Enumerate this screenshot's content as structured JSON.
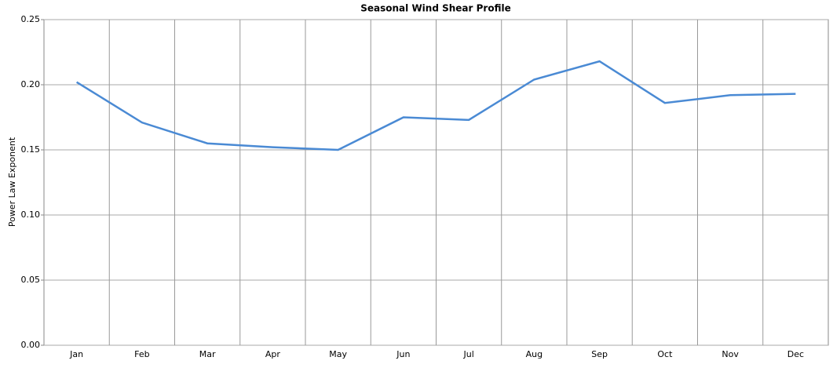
{
  "chart_data": {
    "type": "line",
    "title": "Seasonal Wind Shear Profile",
    "y_label": "Power Law Exponent",
    "categories": [
      "Jan",
      "Feb",
      "Mar",
      "Apr",
      "May",
      "Jun",
      "Jul",
      "Aug",
      "Sep",
      "Oct",
      "Nov",
      "Dec"
    ],
    "series": [
      {
        "name": "Power Law Exponent",
        "color": "#4a8ad4",
        "values": [
          0.202,
          0.171,
          0.155,
          0.152,
          0.15,
          0.175,
          0.173,
          0.204,
          0.218,
          0.186,
          0.192,
          0.193
        ]
      }
    ],
    "ylim": [
      0,
      0.25
    ],
    "yticks": [
      {
        "value": 0,
        "label": "0.00"
      },
      0.05,
      {
        "value": 0.1,
        "label": "0.10"
      },
      0.15,
      {
        "value": 0.2,
        "label": "0.20"
      },
      0.25
    ],
    "grid": true
  }
}
